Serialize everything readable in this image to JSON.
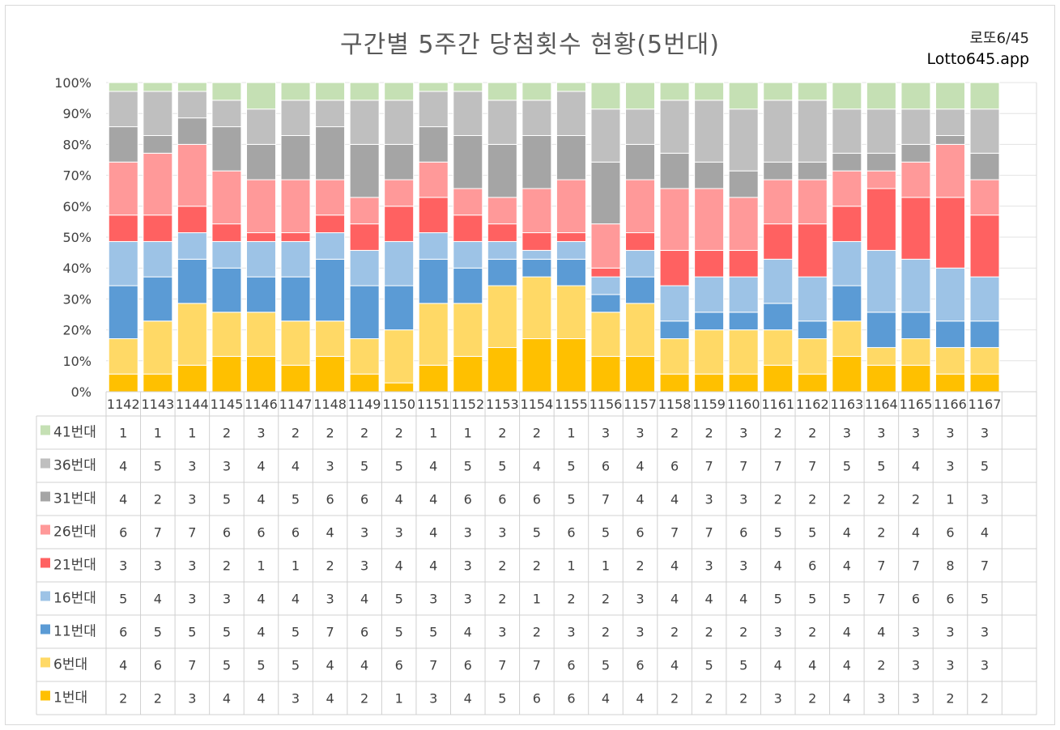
{
  "page": {
    "title": "구간별 5주간 당첨횟수 현황(5번대)",
    "brand_line1": "로또6/45",
    "brand_line2": "Lotto645.app"
  },
  "chart_data": {
    "type": "bar",
    "stacked": "percent",
    "title": "구간별 5주간 당첨횟수 현황(5번대)",
    "xlabel": "",
    "ylabel": "",
    "ylim": [
      0,
      100
    ],
    "y_ticks": [
      "0%",
      "10%",
      "20%",
      "30%",
      "40%",
      "50%",
      "60%",
      "70%",
      "80%",
      "90%",
      "100%"
    ],
    "grid": true,
    "legend": "data-table-left",
    "categories": [
      "1142",
      "1143",
      "1144",
      "1145",
      "1146",
      "1147",
      "1148",
      "1149",
      "1150",
      "1151",
      "1152",
      "1153",
      "1154",
      "1155",
      "1156",
      "1157",
      "1158",
      "1159",
      "1160",
      "1161",
      "1162",
      "1163",
      "1164",
      "1165",
      "1166",
      "1167"
    ],
    "series": [
      {
        "name": "1번대",
        "color": "#ffc000",
        "values": [
          2,
          2,
          3,
          4,
          4,
          3,
          4,
          2,
          1,
          3,
          4,
          5,
          6,
          6,
          4,
          4,
          2,
          2,
          2,
          3,
          2,
          4,
          3,
          3,
          2,
          2
        ]
      },
      {
        "name": "6번대",
        "color": "#ffd966",
        "values": [
          4,
          6,
          7,
          5,
          5,
          5,
          4,
          4,
          6,
          7,
          6,
          7,
          7,
          6,
          5,
          6,
          4,
          5,
          5,
          4,
          4,
          4,
          2,
          3,
          3,
          3
        ]
      },
      {
        "name": "11번대",
        "color": "#5b9bd5",
        "values": [
          6,
          5,
          5,
          5,
          4,
          5,
          7,
          6,
          5,
          5,
          4,
          3,
          2,
          3,
          2,
          3,
          2,
          2,
          2,
          3,
          2,
          4,
          4,
          3,
          3,
          3
        ]
      },
      {
        "name": "16번대",
        "color": "#9dc3e6",
        "values": [
          5,
          4,
          3,
          3,
          4,
          4,
          3,
          4,
          5,
          3,
          3,
          2,
          1,
          2,
          2,
          3,
          4,
          4,
          4,
          5,
          5,
          5,
          7,
          6,
          6,
          5
        ]
      },
      {
        "name": "21번대",
        "color": "#ff6161",
        "values": [
          3,
          3,
          3,
          2,
          1,
          1,
          2,
          3,
          4,
          4,
          3,
          2,
          2,
          1,
          1,
          2,
          4,
          3,
          3,
          4,
          6,
          4,
          7,
          7,
          8,
          7
        ]
      },
      {
        "name": "26번대",
        "color": "#ff9999",
        "values": [
          6,
          7,
          7,
          6,
          6,
          6,
          4,
          3,
          3,
          4,
          3,
          3,
          5,
          6,
          5,
          6,
          7,
          7,
          6,
          5,
          5,
          4,
          2,
          4,
          6,
          4
        ]
      },
      {
        "name": "31번대",
        "color": "#a5a5a5",
        "values": [
          4,
          2,
          3,
          5,
          4,
          5,
          6,
          6,
          4,
          4,
          6,
          6,
          6,
          5,
          7,
          4,
          4,
          3,
          3,
          2,
          2,
          2,
          2,
          2,
          1,
          3
        ]
      },
      {
        "name": "36번대",
        "color": "#bfbfbf",
        "values": [
          4,
          5,
          3,
          3,
          4,
          4,
          3,
          5,
          5,
          4,
          5,
          5,
          4,
          5,
          6,
          4,
          6,
          7,
          7,
          7,
          7,
          5,
          5,
          4,
          3,
          5
        ]
      },
      {
        "name": "41번대",
        "color": "#c5e0b4",
        "values": [
          1,
          1,
          1,
          2,
          3,
          2,
          2,
          2,
          2,
          1,
          1,
          2,
          2,
          1,
          3,
          3,
          2,
          2,
          3,
          2,
          2,
          3,
          3,
          3,
          3,
          3
        ]
      }
    ]
  }
}
